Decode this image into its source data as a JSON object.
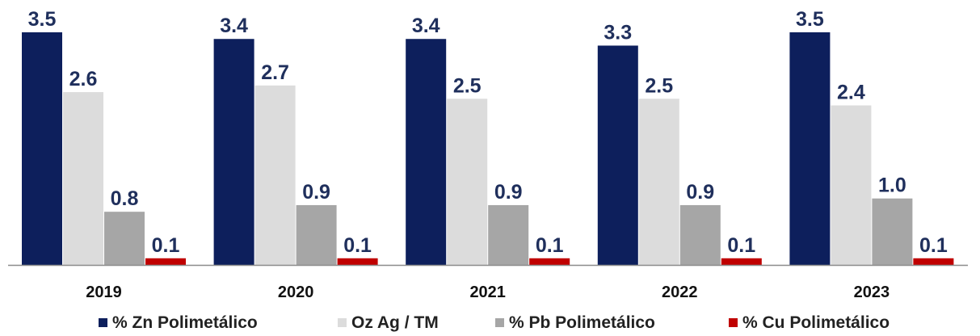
{
  "chart_data": {
    "type": "bar",
    "categories": [
      "2019",
      "2020",
      "2021",
      "2022",
      "2023"
    ],
    "series": [
      {
        "name": "% Zn Polimetálico",
        "values": [
          3.5,
          3.4,
          3.4,
          3.3,
          3.5
        ],
        "labels": [
          "3.5",
          "3.4",
          "3.4",
          "3.3",
          "3.5"
        ],
        "color": "#0d1f5c"
      },
      {
        "name": "Oz Ag / TM",
        "values": [
          2.6,
          2.7,
          2.5,
          2.5,
          2.4
        ],
        "labels": [
          "2.6",
          "2.7",
          "2.5",
          "2.5",
          "2.4"
        ],
        "color": "#dcdcdc"
      },
      {
        "name": "% Pb Polimetálico",
        "values": [
          0.8,
          0.9,
          0.9,
          0.9,
          1.0
        ],
        "labels": [
          "0.8",
          "0.9",
          "0.9",
          "0.9",
          "1.0"
        ],
        "color": "#a6a6a6"
      },
      {
        "name": "% Cu Polimetálico",
        "values": [
          0.1,
          0.1,
          0.1,
          0.1,
          0.1
        ],
        "labels": [
          "0.1",
          "0.1",
          "0.1",
          "0.1",
          "0.1"
        ],
        "color": "#c00000"
      }
    ],
    "title": "",
    "xlabel": "",
    "ylabel": "",
    "ylim": [
      0,
      3.6
    ],
    "grid": false,
    "legend": "bottom"
  }
}
